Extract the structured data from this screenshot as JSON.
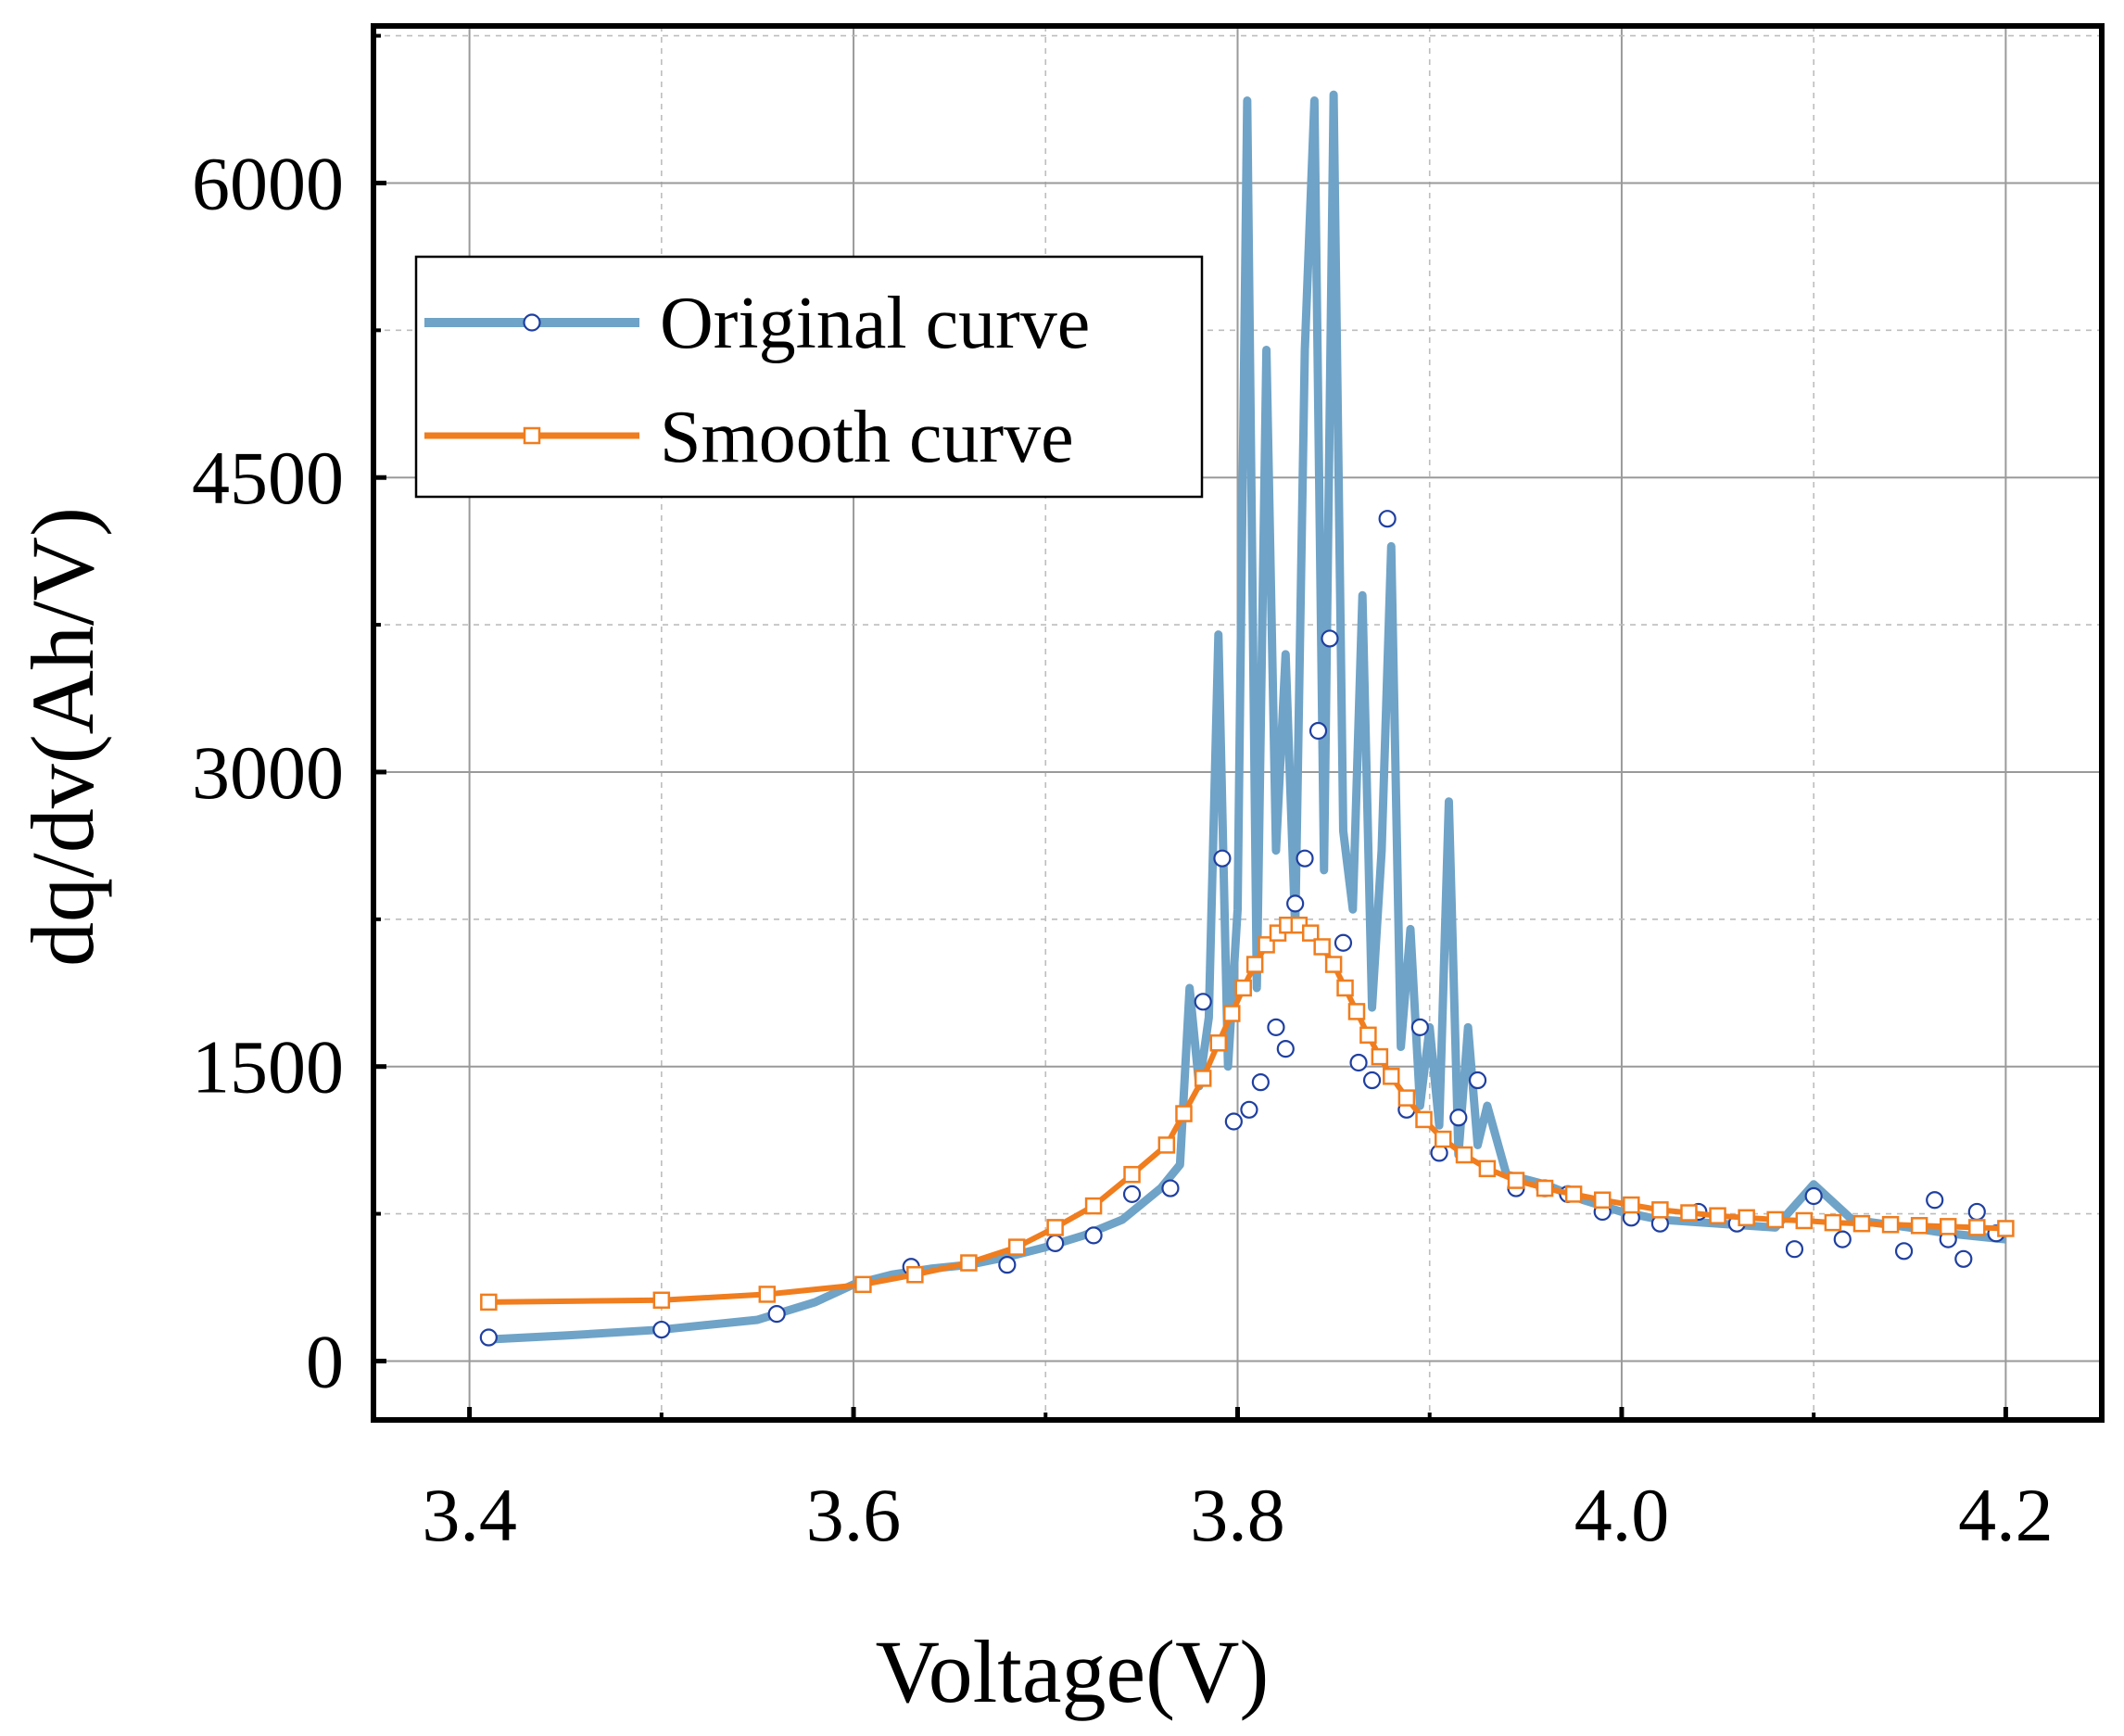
{
  "chart_data": {
    "type": "line",
    "title": "",
    "xlabel": "Voltage(V)",
    "ylabel": "dq/dv(Ah/V)",
    "xlim": [
      3.35,
      4.25
    ],
    "ylim": [
      -300,
      6800
    ],
    "x_ticks": [
      3.4,
      3.6,
      3.8,
      4.0,
      4.2
    ],
    "x_tick_labels": [
      "3.4",
      "3.6",
      "3.8",
      "4.0",
      "4.2"
    ],
    "y_ticks": [
      0,
      1500,
      3000,
      4500,
      6000
    ],
    "y_tick_labels": [
      "0",
      "1500",
      "3000",
      "4500",
      "6000"
    ],
    "grid": true,
    "legend_position": "top-left",
    "colors": {
      "original": "#6fa3c7",
      "smooth": "#f07d1e",
      "marker_edge_original": "#1f3fa0"
    },
    "series": [
      {
        "name": "Original curve",
        "marker": "circle",
        "line": [
          [
            3.41,
            110
          ],
          [
            3.45,
            130
          ],
          [
            3.5,
            160
          ],
          [
            3.55,
            210
          ],
          [
            3.58,
            300
          ],
          [
            3.6,
            390
          ],
          [
            3.62,
            440
          ],
          [
            3.64,
            470
          ],
          [
            3.66,
            490
          ],
          [
            3.68,
            530
          ],
          [
            3.7,
            580
          ],
          [
            3.72,
            640
          ],
          [
            3.74,
            720
          ],
          [
            3.75,
            800
          ],
          [
            3.76,
            880
          ],
          [
            3.77,
            1000
          ],
          [
            3.775,
            1900
          ],
          [
            3.78,
            1400
          ],
          [
            3.785,
            1750
          ],
          [
            3.79,
            3700
          ],
          [
            3.795,
            1500
          ],
          [
            3.8,
            2300
          ],
          [
            3.805,
            6420
          ],
          [
            3.81,
            1900
          ],
          [
            3.815,
            5150
          ],
          [
            3.82,
            2600
          ],
          [
            3.825,
            3600
          ],
          [
            3.83,
            2200
          ],
          [
            3.835,
            5150
          ],
          [
            3.84,
            6420
          ],
          [
            3.845,
            2500
          ],
          [
            3.85,
            6450
          ],
          [
            3.855,
            2700
          ],
          [
            3.86,
            2300
          ],
          [
            3.865,
            3900
          ],
          [
            3.87,
            1800
          ],
          [
            3.875,
            2600
          ],
          [
            3.88,
            4150
          ],
          [
            3.885,
            1600
          ],
          [
            3.89,
            2200
          ],
          [
            3.895,
            1300
          ],
          [
            3.9,
            1700
          ],
          [
            3.905,
            1200
          ],
          [
            3.91,
            2850
          ],
          [
            3.915,
            1050
          ],
          [
            3.92,
            1700
          ],
          [
            3.925,
            1100
          ],
          [
            3.93,
            1300
          ],
          [
            3.94,
            950
          ],
          [
            3.96,
            900
          ],
          [
            3.98,
            820
          ],
          [
            4.0,
            760
          ],
          [
            4.02,
            720
          ],
          [
            4.05,
            700
          ],
          [
            4.08,
            680
          ],
          [
            4.1,
            900
          ],
          [
            4.12,
            720
          ],
          [
            4.15,
            680
          ],
          [
            4.17,
            650
          ],
          [
            4.2,
            620
          ]
        ],
        "points": [
          [
            3.41,
            120
          ],
          [
            3.5,
            160
          ],
          [
            3.56,
            240
          ],
          [
            3.63,
            480
          ],
          [
            3.68,
            490
          ],
          [
            3.705,
            600
          ],
          [
            3.725,
            640
          ],
          [
            3.745,
            850
          ],
          [
            3.765,
            880
          ],
          [
            3.782,
            1830
          ],
          [
            3.792,
            2560
          ],
          [
            3.798,
            1220
          ],
          [
            3.806,
            1280
          ],
          [
            3.812,
            1420
          ],
          [
            3.82,
            1700
          ],
          [
            3.825,
            1590
          ],
          [
            3.83,
            2330
          ],
          [
            3.835,
            2560
          ],
          [
            3.842,
            3210
          ],
          [
            3.848,
            3680
          ],
          [
            3.855,
            2130
          ],
          [
            3.863,
            1520
          ],
          [
            3.87,
            1430
          ],
          [
            3.878,
            4290
          ],
          [
            3.888,
            1280
          ],
          [
            3.895,
            1700
          ],
          [
            3.905,
            1060
          ],
          [
            3.915,
            1240
          ],
          [
            3.925,
            1430
          ],
          [
            3.945,
            880
          ],
          [
            3.96,
            880
          ],
          [
            3.972,
            850
          ],
          [
            3.99,
            760
          ],
          [
            4.005,
            730
          ],
          [
            4.02,
            700
          ],
          [
            4.04,
            760
          ],
          [
            4.06,
            700
          ],
          [
            4.09,
            570
          ],
          [
            4.1,
            840
          ],
          [
            4.115,
            620
          ],
          [
            4.147,
            560
          ],
          [
            4.163,
            820
          ],
          [
            4.17,
            620
          ],
          [
            4.178,
            520
          ],
          [
            4.185,
            760
          ],
          [
            4.195,
            650
          ]
        ]
      },
      {
        "name": "Smooth curve",
        "marker": "square",
        "points": [
          [
            3.41,
            300
          ],
          [
            3.5,
            310
          ],
          [
            3.555,
            340
          ],
          [
            3.605,
            390
          ],
          [
            3.632,
            440
          ],
          [
            3.66,
            500
          ],
          [
            3.685,
            580
          ],
          [
            3.705,
            680
          ],
          [
            3.725,
            790
          ],
          [
            3.745,
            950
          ],
          [
            3.763,
            1100
          ],
          [
            3.772,
            1260
          ],
          [
            3.782,
            1440
          ],
          [
            3.79,
            1620
          ],
          [
            3.797,
            1770
          ],
          [
            3.803,
            1900
          ],
          [
            3.809,
            2020
          ],
          [
            3.815,
            2120
          ],
          [
            3.821,
            2180
          ],
          [
            3.826,
            2220
          ],
          [
            3.832,
            2220
          ],
          [
            3.838,
            2180
          ],
          [
            3.844,
            2110
          ],
          [
            3.85,
            2020
          ],
          [
            3.856,
            1900
          ],
          [
            3.862,
            1780
          ],
          [
            3.868,
            1660
          ],
          [
            3.874,
            1550
          ],
          [
            3.88,
            1450
          ],
          [
            3.888,
            1340
          ],
          [
            3.897,
            1230
          ],
          [
            3.907,
            1130
          ],
          [
            3.918,
            1050
          ],
          [
            3.93,
            980
          ],
          [
            3.945,
            920
          ],
          [
            3.96,
            880
          ],
          [
            3.975,
            850
          ],
          [
            3.99,
            820
          ],
          [
            4.005,
            795
          ],
          [
            4.02,
            770
          ],
          [
            4.035,
            755
          ],
          [
            4.05,
            740
          ],
          [
            4.065,
            730
          ],
          [
            4.08,
            720
          ],
          [
            4.095,
            715
          ],
          [
            4.11,
            705
          ],
          [
            4.125,
            700
          ],
          [
            4.14,
            695
          ],
          [
            4.155,
            690
          ],
          [
            4.17,
            685
          ],
          [
            4.185,
            680
          ],
          [
            4.2,
            675
          ]
        ]
      }
    ]
  }
}
